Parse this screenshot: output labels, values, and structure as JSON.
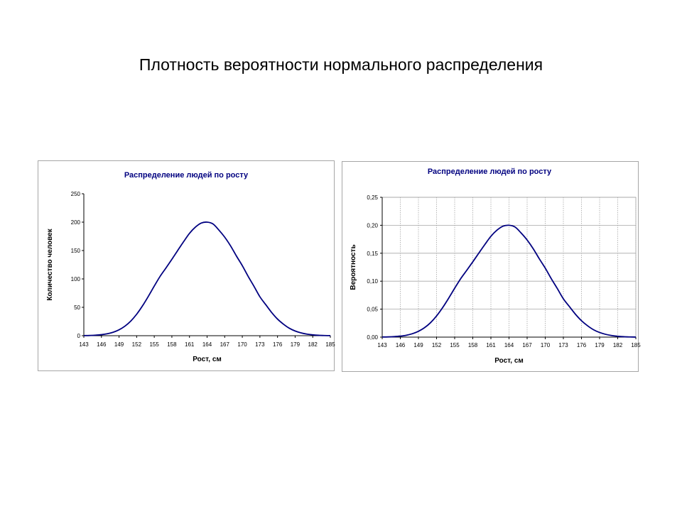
{
  "slide": {
    "title": "Плотность вероятности нормального распределения"
  },
  "colors": {
    "curve": "#000080",
    "title": "#000080",
    "axis": "#000000",
    "grid": "#a6a6a6",
    "border": "#a6a6a6"
  },
  "chart_data": [
    {
      "type": "line",
      "title": "Распределение людей по росту",
      "xlabel": "Рост, см",
      "ylabel": "Количество человек",
      "grid": false,
      "x_ticks": [
        "143",
        "146",
        "149",
        "152",
        "155",
        "158",
        "161",
        "164",
        "167",
        "170",
        "173",
        "176",
        "179",
        "182",
        "185"
      ],
      "y_ticks": [
        "0",
        "50",
        "100",
        "150",
        "200",
        "250"
      ],
      "ylim": [
        0,
        250
      ],
      "series": [
        {
          "x": [
            143,
            144,
            145,
            146,
            147,
            148,
            149,
            150,
            151,
            152,
            153,
            154,
            155,
            156,
            157,
            158,
            159,
            160,
            161,
            162,
            163,
            164,
            165,
            166,
            167,
            168,
            169,
            170,
            171,
            172,
            173,
            174,
            175,
            176,
            177,
            178,
            179,
            180,
            181,
            182,
            183,
            184,
            185
          ],
          "values": [
            0.2,
            0.4,
            0.9,
            1.8,
            3.4,
            6.1,
            10.4,
            16.8,
            25.8,
            37.8,
            52.6,
            69.5,
            87.4,
            104.6,
            119.4,
            134.6,
            150.2,
            165.6,
            180.3,
            191.2,
            198.4,
            200,
            196.8,
            186.2,
            173.6,
            158.2,
            140.3,
            123.4,
            104.5,
            86.8,
            68.5,
            54.6,
            40.9,
            29.3,
            20.4,
            13.2,
            8.3,
            5.0,
            2.8,
            1.5,
            0.7,
            0.3,
            0.1
          ]
        }
      ]
    },
    {
      "type": "line",
      "title": "Распределение людей по росту",
      "xlabel": "Рост, см",
      "ylabel": "Вероятность",
      "grid": true,
      "x_ticks": [
        "143",
        "146",
        "149",
        "152",
        "155",
        "158",
        "161",
        "164",
        "167",
        "170",
        "173",
        "176",
        "179",
        "182",
        "185"
      ],
      "y_ticks": [
        "0,00",
        "0,05",
        "0,10",
        "0,15",
        "0,20",
        "0,25"
      ],
      "ylim": [
        0,
        0.25
      ],
      "series": [
        {
          "x": [
            143,
            144,
            145,
            146,
            147,
            148,
            149,
            150,
            151,
            152,
            153,
            154,
            155,
            156,
            157,
            158,
            159,
            160,
            161,
            162,
            163,
            164,
            165,
            166,
            167,
            168,
            169,
            170,
            171,
            172,
            173,
            174,
            175,
            176,
            177,
            178,
            179,
            180,
            181,
            182,
            183,
            184,
            185
          ],
          "values": [
            0.0002,
            0.0004,
            0.0009,
            0.0018,
            0.0034,
            0.0061,
            0.0104,
            0.0168,
            0.0258,
            0.0378,
            0.0526,
            0.0695,
            0.0874,
            0.1046,
            0.1194,
            0.1346,
            0.1502,
            0.1656,
            0.1803,
            0.1912,
            0.1984,
            0.2,
            0.1968,
            0.1862,
            0.1736,
            0.1582,
            0.1403,
            0.1234,
            0.1045,
            0.0868,
            0.0685,
            0.0546,
            0.0409,
            0.0293,
            0.0204,
            0.0132,
            0.0083,
            0.005,
            0.0028,
            0.0015,
            0.0007,
            0.0003,
            0.0001
          ]
        }
      ]
    }
  ]
}
